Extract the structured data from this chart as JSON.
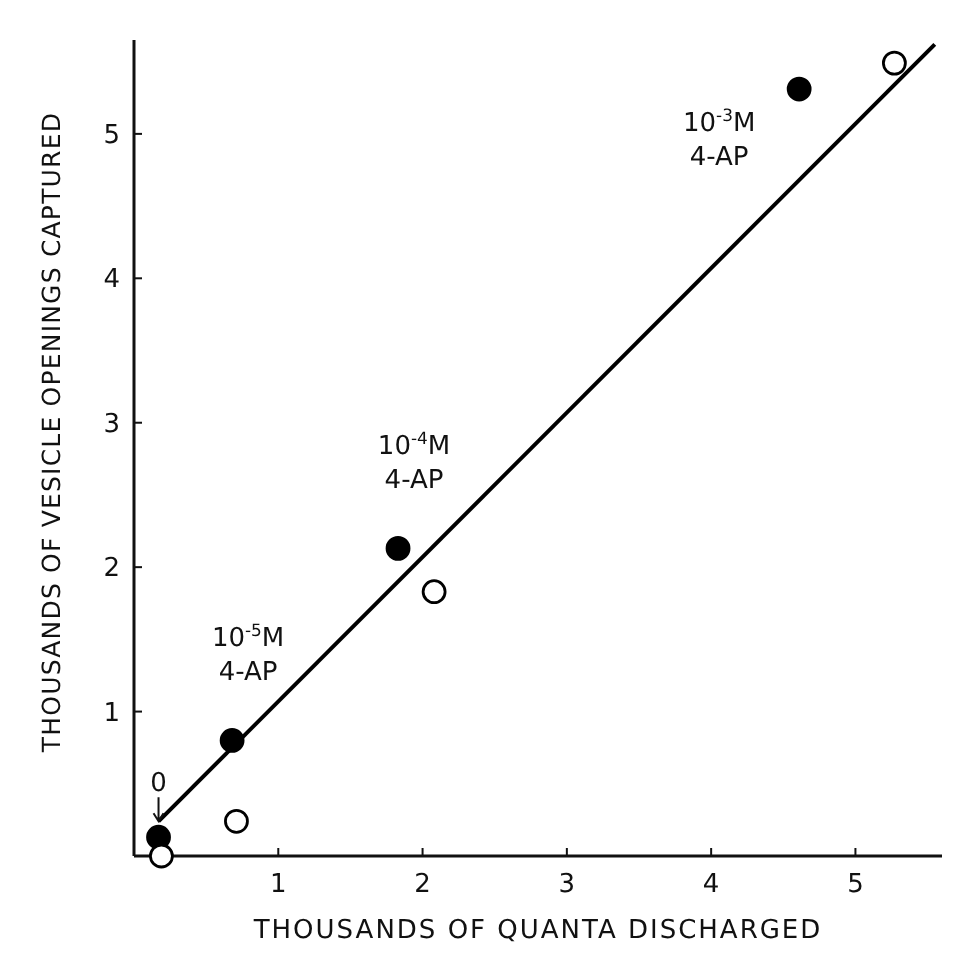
{
  "chart_data": {
    "type": "scatter",
    "xlabel": "THOUSANDS OF QUANTA DISCHARGED",
    "ylabel": "THOUSANDS OF VESICLE OPENINGS CAPTURED",
    "xlim": [
      0,
      5.6
    ],
    "ylim": [
      0,
      5.65
    ],
    "xticks": [
      1,
      2,
      3,
      4,
      5
    ],
    "yticks": [
      1,
      2,
      3,
      4,
      5
    ],
    "grid": false,
    "marker": "circle",
    "series": [
      {
        "color": "#000000",
        "x": [
          0.17,
          0.68,
          1.83,
          4.61
        ],
        "values": [
          0.13,
          0.8,
          2.13,
          5.31
        ]
      },
      {
        "color": "#ffffff",
        "x": [
          0.19,
          0.71,
          2.08,
          5.27
        ],
        "values": [
          0,
          0.24,
          1.83,
          5.49
        ]
      },
      {
        "type": "line",
        "marker": "none",
        "color": "#000000",
        "x": [
          0.17,
          5.55
        ],
        "values": [
          0.24,
          5.62
        ]
      }
    ],
    "annotations": [
      {
        "text": "10$^{-3}$M\n4-AP",
        "x": 4.61,
        "y": 5.31
      },
      {
        "text": "10$^{-4}$M\n4-AP",
        "x": 1.83,
        "y": 2.13
      },
      {
        "text": "10$^{-5}$M\n4-AP",
        "x": 0.68,
        "y": 0.8
      },
      {
        "text": "0",
        "x": 0.17,
        "y": 0.13
      }
    ]
  }
}
